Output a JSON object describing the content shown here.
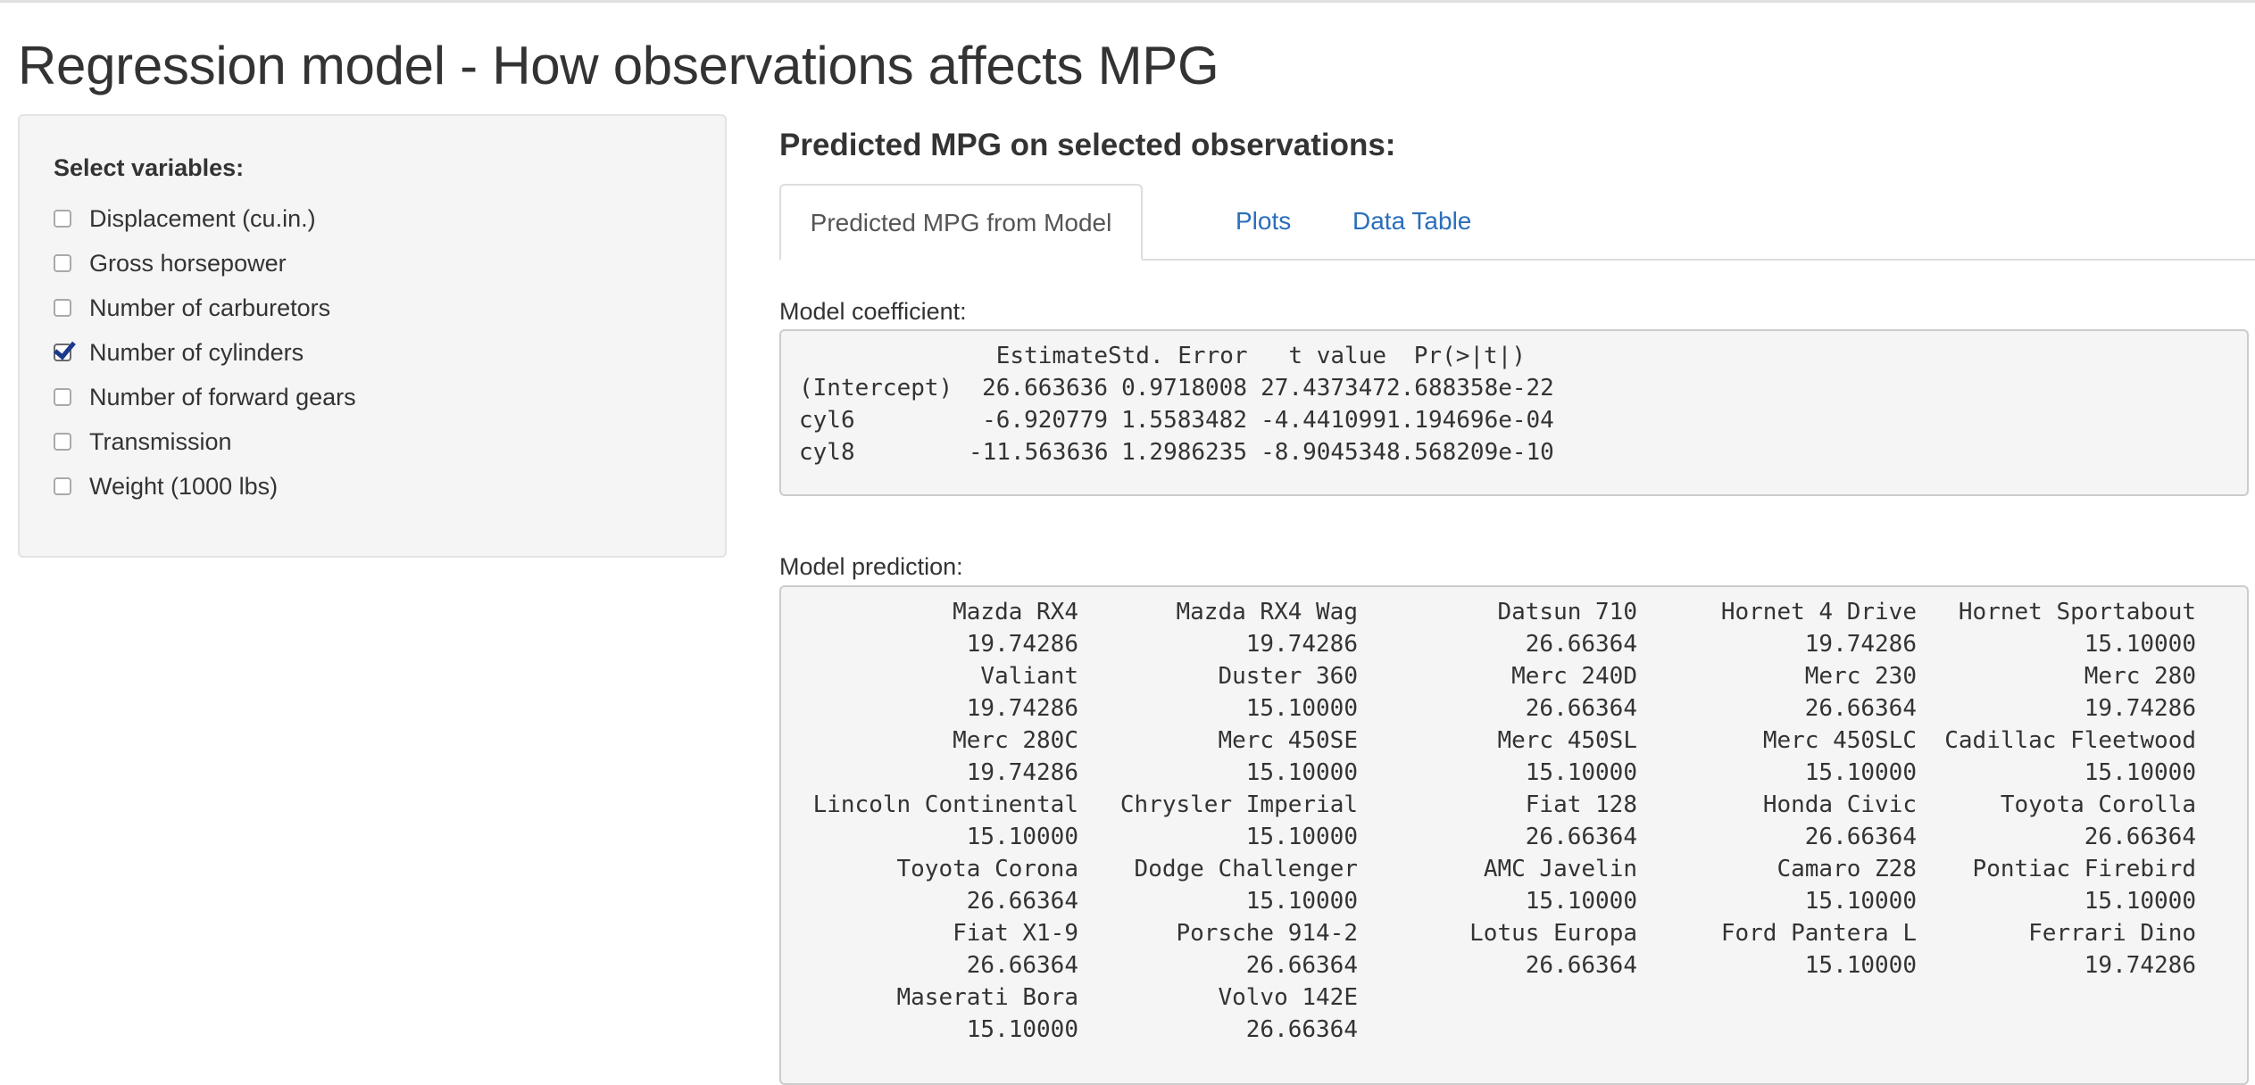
{
  "title": "Regression model - How observations affects MPG",
  "sidebar": {
    "label": "Select variables:",
    "variables": [
      {
        "label": "Displacement (cu.in.)",
        "checked": false
      },
      {
        "label": "Gross horsepower",
        "checked": false
      },
      {
        "label": "Number of carburetors",
        "checked": false
      },
      {
        "label": "Number of cylinders",
        "checked": true
      },
      {
        "label": "Number of forward gears",
        "checked": false
      },
      {
        "label": "Transmission",
        "checked": false
      },
      {
        "label": "Weight (1000 lbs)",
        "checked": false
      }
    ]
  },
  "main": {
    "heading": "Predicted MPG on selected observations:",
    "tabs": [
      {
        "label": "Predicted MPG from Model",
        "active": true
      },
      {
        "label": "Plots",
        "active": false
      },
      {
        "label": "Data Table",
        "active": false
      }
    ],
    "coefficient_label": "Model coefficient:",
    "coefficients": {
      "headers": [
        "Estimate",
        "Std. Error",
        "t value",
        "Pr(>|t|)"
      ],
      "rows": [
        {
          "name": "(Intercept)",
          "values": [
            "26.663636",
            "0.9718008",
            "27.437347",
            "2.688358e-22"
          ]
        },
        {
          "name": "cyl6",
          "values": [
            "-6.920779",
            "1.5583482",
            "-4.441099",
            "1.194696e-04"
          ]
        },
        {
          "name": "cyl8",
          "values": [
            "-11.563636",
            "1.2986235",
            "-8.904534",
            "8.568209e-10"
          ]
        }
      ]
    },
    "prediction_label": "Model prediction:",
    "predictions": [
      {
        "car": "Mazda RX4",
        "mpg": "19.74286"
      },
      {
        "car": "Mazda RX4 Wag",
        "mpg": "19.74286"
      },
      {
        "car": "Datsun 710",
        "mpg": "26.66364"
      },
      {
        "car": "Hornet 4 Drive",
        "mpg": "19.74286"
      },
      {
        "car": "Hornet Sportabout",
        "mpg": "15.10000"
      },
      {
        "car": "Valiant",
        "mpg": "19.74286"
      },
      {
        "car": "Duster 360",
        "mpg": "15.10000"
      },
      {
        "car": "Merc 240D",
        "mpg": "26.66364"
      },
      {
        "car": "Merc 230",
        "mpg": "26.66364"
      },
      {
        "car": "Merc 280",
        "mpg": "19.74286"
      },
      {
        "car": "Merc 280C",
        "mpg": "19.74286"
      },
      {
        "car": "Merc 450SE",
        "mpg": "15.10000"
      },
      {
        "car": "Merc 450SL",
        "mpg": "15.10000"
      },
      {
        "car": "Merc 450SLC",
        "mpg": "15.10000"
      },
      {
        "car": "Cadillac Fleetwood",
        "mpg": "15.10000"
      },
      {
        "car": "Lincoln Continental",
        "mpg": "15.10000"
      },
      {
        "car": "Chrysler Imperial",
        "mpg": "15.10000"
      },
      {
        "car": "Fiat 128",
        "mpg": "26.66364"
      },
      {
        "car": "Honda Civic",
        "mpg": "26.66364"
      },
      {
        "car": "Toyota Corolla",
        "mpg": "26.66364"
      },
      {
        "car": "Toyota Corona",
        "mpg": "26.66364"
      },
      {
        "car": "Dodge Challenger",
        "mpg": "15.10000"
      },
      {
        "car": "AMC Javelin",
        "mpg": "15.10000"
      },
      {
        "car": "Camaro Z28",
        "mpg": "15.10000"
      },
      {
        "car": "Pontiac Firebird",
        "mpg": "15.10000"
      },
      {
        "car": "Fiat X1-9",
        "mpg": "26.66364"
      },
      {
        "car": "Porsche 914-2",
        "mpg": "26.66364"
      },
      {
        "car": "Lotus Europa",
        "mpg": "26.66364"
      },
      {
        "car": "Ford Pantera L",
        "mpg": "15.10000"
      },
      {
        "car": "Ferrari Dino",
        "mpg": "19.74286"
      },
      {
        "car": "Maserati Bora",
        "mpg": "15.10000"
      },
      {
        "car": "Volvo 142E",
        "mpg": "26.66364"
      }
    ]
  }
}
